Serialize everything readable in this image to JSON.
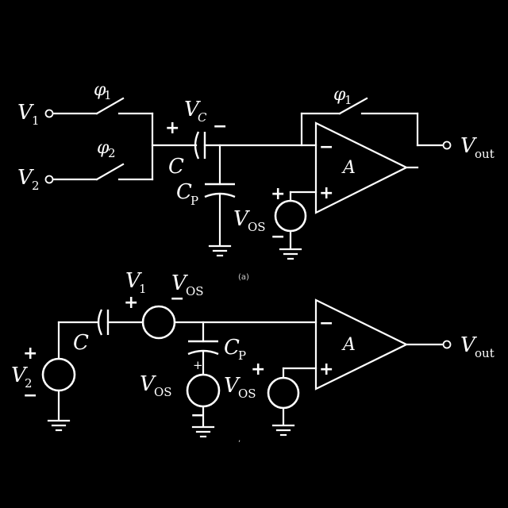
{
  "circuit_a": {
    "input1": {
      "main": "V",
      "sub": "1"
    },
    "input2": {
      "main": "V",
      "sub": "2"
    },
    "switch1": {
      "main": "φ",
      "sub": "1"
    },
    "switch2": {
      "main": "φ",
      "sub": "2"
    },
    "switch_fb": {
      "main": "φ",
      "sub": "1"
    },
    "cap_voltage": {
      "main": "V",
      "sub": "C"
    },
    "cap_c": "C",
    "cap_p": {
      "main": "C",
      "sub": "P"
    },
    "offset": {
      "main": "V",
      "sub": "OS"
    },
    "amp": "A",
    "output": {
      "main": "V",
      "sub": "out"
    },
    "plus": "+",
    "minus": "−",
    "caption": "(a)"
  },
  "circuit_b": {
    "input1": {
      "main": "V",
      "sub": "1"
    },
    "input2": {
      "main": "V",
      "sub": "2"
    },
    "cap_c": "C",
    "cap_p": {
      "main": "C",
      "sub": "P"
    },
    "offset_series": {
      "main": "V",
      "sub": "OS"
    },
    "offset_cp": {
      "main": "V",
      "sub": "OS"
    },
    "offset_plus": {
      "main": "V",
      "sub": "OS"
    },
    "amp": "A",
    "output": {
      "main": "V",
      "sub": "out"
    },
    "plus": "+",
    "minus": "−",
    "caption": ","
  }
}
